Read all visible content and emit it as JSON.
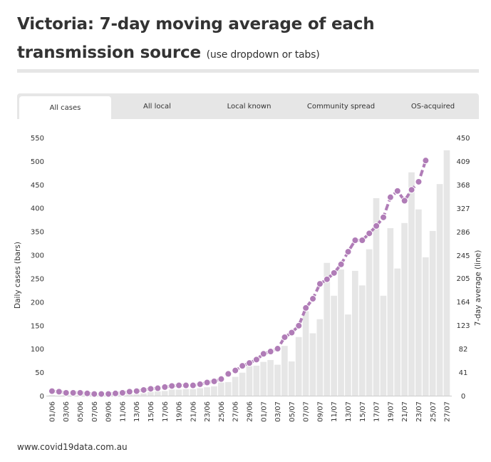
{
  "title": {
    "main": "Victoria: 7-day moving average of each transmission source",
    "sub": "(use dropdown or tabs)"
  },
  "tabs": [
    {
      "label": "All cases",
      "active": true
    },
    {
      "label": "All local"
    },
    {
      "label": "Local known"
    },
    {
      "label": "Community spread"
    },
    {
      "label": "OS-acquired"
    }
  ],
  "footer": "www.covid19data.com.au",
  "chart_data": {
    "type": "bar+line",
    "categories": [
      "01/06",
      "02/06",
      "03/06",
      "04/06",
      "05/06",
      "06/06",
      "07/06",
      "08/06",
      "09/06",
      "10/06",
      "11/06",
      "12/06",
      "13/06",
      "14/06",
      "15/06",
      "16/06",
      "17/06",
      "18/06",
      "19/06",
      "20/06",
      "21/06",
      "22/06",
      "23/06",
      "24/06",
      "25/06",
      "26/06",
      "27/06",
      "28/06",
      "29/06",
      "30/06",
      "01/07",
      "02/07",
      "03/07",
      "04/07",
      "05/07",
      "06/07",
      "07/07",
      "08/07",
      "09/07",
      "10/07",
      "11/07",
      "12/07",
      "13/07",
      "14/07",
      "15/07",
      "16/07",
      "17/07",
      "18/07",
      "19/07",
      "20/07",
      "21/07",
      "22/07",
      "23/07",
      "24/07",
      "25/07",
      "26/07",
      "27/07"
    ],
    "xtick_labels": [
      "01/06",
      "03/06",
      "05/06",
      "07/06",
      "09/06",
      "11/06",
      "13/06",
      "15/06",
      "17/06",
      "19/06",
      "21/06",
      "23/06",
      "25/06",
      "27/06",
      "29/06",
      "01/07",
      "03/07",
      "05/07",
      "07/07",
      "09/07",
      "11/07",
      "13/07",
      "15/07",
      "17/07",
      "19/07",
      "21/07",
      "23/07",
      "25/07",
      "27/07"
    ],
    "series": [
      {
        "name": "Daily cases (bars)",
        "type": "bar",
        "axis": "left",
        "color": "#e6e6e6",
        "values": [
          1,
          0,
          1,
          0,
          1,
          1,
          0,
          2,
          1,
          3,
          2,
          4,
          3,
          5,
          8,
          9,
          10,
          13,
          13,
          14,
          14,
          16,
          18,
          20,
          28,
          29,
          40,
          49,
          63,
          64,
          72,
          76,
          66,
          106,
          73,
          125,
          180,
          133,
          163,
          283,
          213,
          269,
          173,
          266,
          235,
          312,
          421,
          213,
          357,
          271,
          368,
          476,
          397,
          295,
          351,
          451,
          523
        ]
      },
      {
        "name": "7-day average (line)",
        "type": "line",
        "axis": "right",
        "color": "#b07cb7",
        "values": [
          8,
          7,
          5,
          5,
          5,
          4,
          3,
          3,
          3,
          4,
          5,
          7,
          8,
          10,
          12,
          13,
          15,
          17,
          18,
          18,
          18,
          20,
          23,
          25,
          29,
          38,
          44,
          52,
          57,
          63,
          73,
          77,
          82,
          102,
          110,
          122,
          153,
          169,
          195,
          203,
          214,
          229,
          251,
          271,
          271,
          283,
          296,
          311,
          346,
          357,
          340,
          359,
          373,
          410,
          null,
          null,
          null
        ]
      }
    ],
    "ylabel": "Daily cases (bars)",
    "ylim": [
      0,
      550
    ],
    "yticks": [
      0,
      50,
      100,
      150,
      200,
      250,
      300,
      350,
      400,
      450,
      500,
      550
    ],
    "y2label": "7-day average (line)",
    "y2lim": [
      0,
      450
    ],
    "y2ticks": [
      0,
      41,
      82,
      123,
      164,
      205,
      245,
      286,
      327,
      368,
      409,
      450
    ],
    "grid": false
  }
}
